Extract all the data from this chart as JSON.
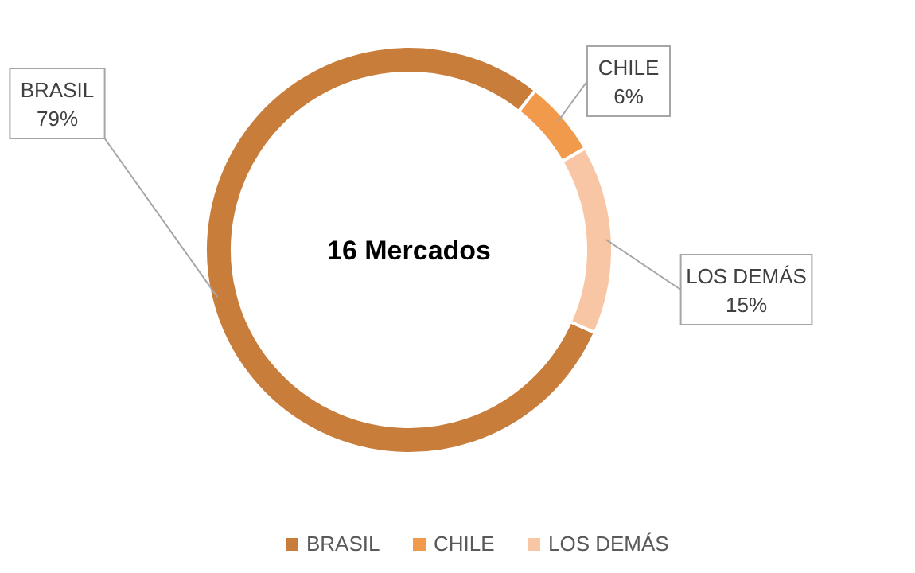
{
  "chart_data": {
    "type": "donut",
    "categories": [
      "BRASIL",
      "CHILE",
      "LOS DEMÁS"
    ],
    "values": [
      79,
      6,
      15
    ],
    "colors": [
      "#c97d3b",
      "#f29a4b",
      "#f8c6a4"
    ],
    "value_labels": [
      "79%",
      "6%",
      "15%"
    ],
    "legend": "bottom",
    "annotations": [
      "16 Mercados"
    ]
  }
}
